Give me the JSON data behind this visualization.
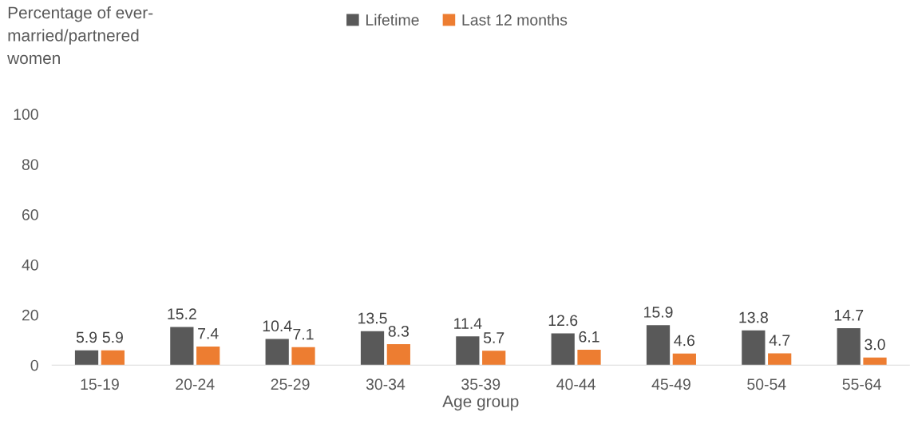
{
  "chart_data": {
    "type": "bar",
    "xlabel": "Age group",
    "ylabel": "Percentage of ever-\nmarried/partnered\nwomen",
    "categories": [
      "15-19",
      "20-24",
      "25-29",
      "30-34",
      "35-39",
      "40-44",
      "45-49",
      "50-54",
      "55-64"
    ],
    "series": [
      {
        "name": "Lifetime",
        "color": "#595959",
        "values": [
          5.9,
          15.2,
          10.4,
          13.5,
          11.4,
          12.6,
          15.9,
          13.8,
          14.7
        ],
        "value_labels": [
          "5.9",
          "15.2",
          "10.4",
          "13.5",
          "11.4",
          "12.6",
          "15.9",
          "13.8",
          "14.7"
        ]
      },
      {
        "name": "Last 12 months",
        "color": "#ed7d31",
        "values": [
          5.9,
          7.4,
          7.1,
          8.3,
          5.7,
          6.1,
          4.6,
          4.7,
          3.0
        ],
        "value_labels": [
          "5.9",
          "7.4",
          "7.1",
          "8.3",
          "5.7",
          "6.1",
          "4.6",
          "4.7",
          "3.0"
        ]
      }
    ],
    "ylim": [
      0,
      100
    ],
    "yticks": [
      0,
      20,
      40,
      60,
      80,
      100
    ],
    "grid": false,
    "legend": "top"
  }
}
